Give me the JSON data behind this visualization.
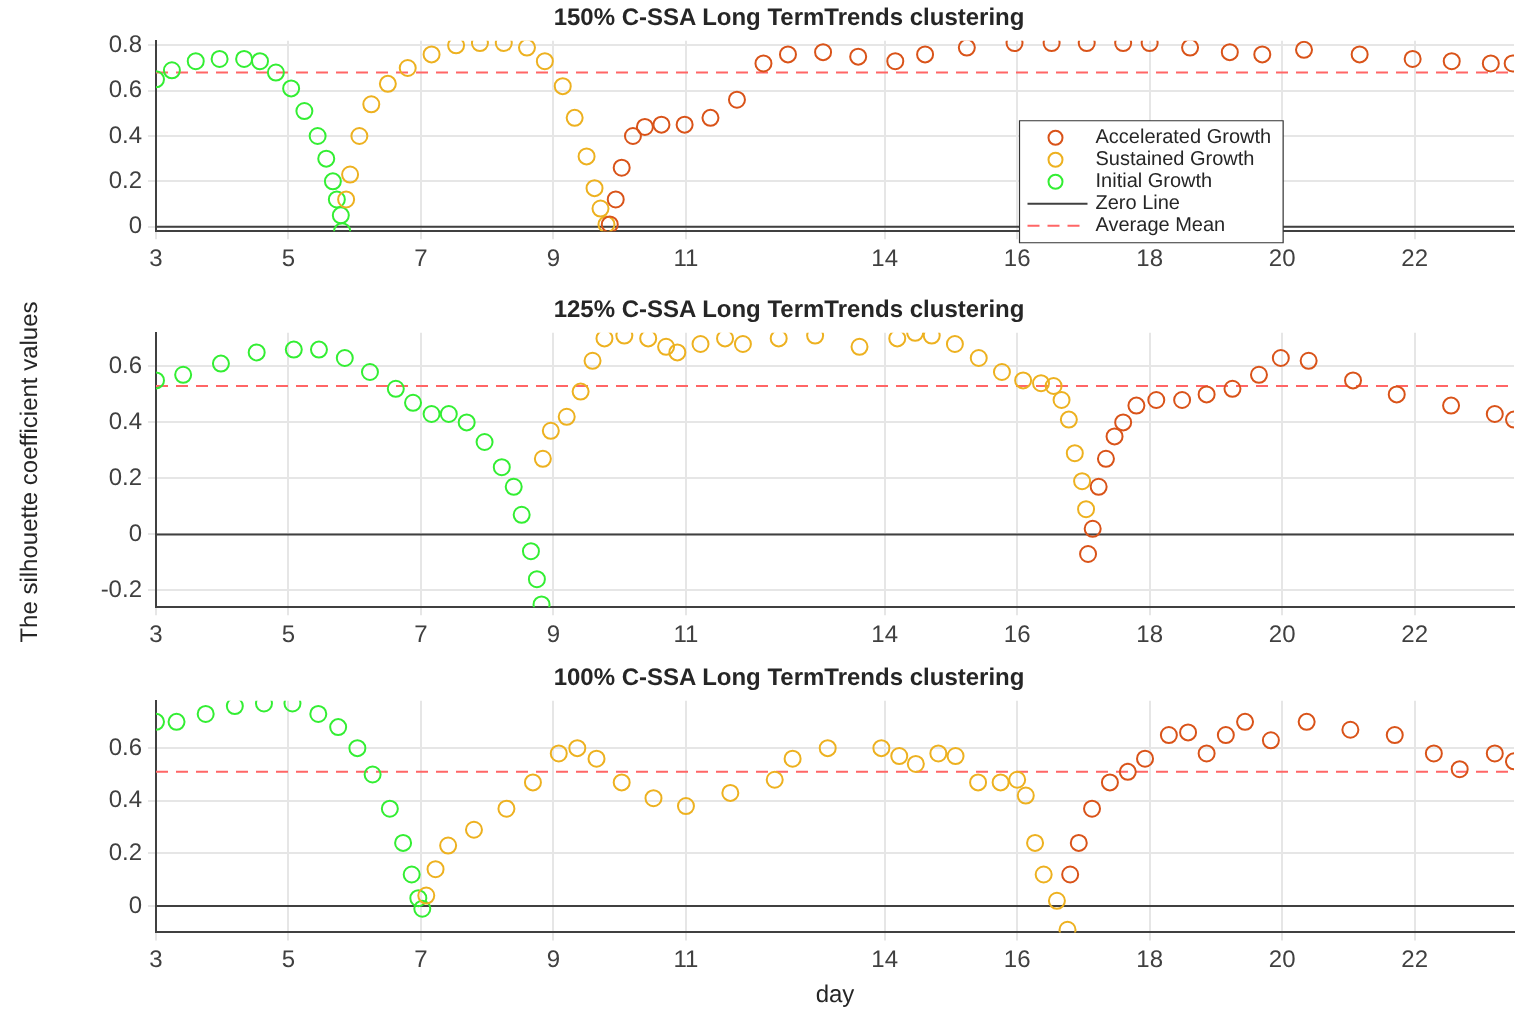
{
  "chart_data": [
    {
      "type": "scatter",
      "title": "150% C-SSA Long TermTrends clustering",
      "marker": "circle",
      "grid": true,
      "legend": "right",
      "xlim": [
        3,
        23.5
      ],
      "ylim": [
        -0.02,
        0.82
      ],
      "xticks": [
        3,
        5,
        7,
        9,
        11,
        14,
        16,
        18,
        20,
        22
      ],
      "yticks": [
        0,
        0.2,
        0.4,
        0.6,
        0.8
      ],
      "series": [
        {
          "name": "Accelerated Growth",
          "color": "#d95319",
          "x": [
            9.85,
            9.94,
            10.03,
            10.2,
            10.38,
            10.63,
            10.98,
            11.37,
            11.77,
            12.17,
            12.54,
            13.07,
            13.6,
            14.16,
            14.61,
            15.24,
            15.96,
            16.52,
            17.05,
            17.6,
            18,
            18.61,
            19.21,
            19.7,
            20.33,
            21.17,
            21.97,
            22.56,
            23.15,
            23.48
          ],
          "values": [
            0.01,
            0.12,
            0.26,
            0.4,
            0.44,
            0.45,
            0.45,
            0.48,
            0.56,
            0.72,
            0.76,
            0.77,
            0.75,
            0.73,
            0.76,
            0.79,
            0.81,
            0.81,
            0.81,
            0.81,
            0.81,
            0.79,
            0.77,
            0.76,
            0.78,
            0.76,
            0.74,
            0.73,
            0.72,
            0.72
          ]
        },
        {
          "name": "Sustained Growth",
          "color": "#edb120",
          "x": [
            5.87,
            5.93,
            6.07,
            6.25,
            6.5,
            6.8,
            7.16,
            7.53,
            7.89,
            8.25,
            8.6,
            8.87,
            9.14,
            9.32,
            9.5,
            9.62,
            9.71,
            9.8
          ],
          "values": [
            0.12,
            0.23,
            0.4,
            0.54,
            0.63,
            0.7,
            0.76,
            0.8,
            0.81,
            0.81,
            0.79,
            0.73,
            0.62,
            0.48,
            0.31,
            0.17,
            0.08,
            0.01
          ]
        },
        {
          "name": "Initial Growth",
          "color": "#33ee33",
          "x": [
            3,
            3.24,
            3.6,
            3.96,
            4.33,
            4.57,
            4.81,
            5.04,
            5.24,
            5.44,
            5.57,
            5.67,
            5.73,
            5.79,
            5.81
          ],
          "values": [
            0.65,
            0.69,
            0.73,
            0.74,
            0.74,
            0.73,
            0.68,
            0.61,
            0.51,
            0.4,
            0.3,
            0.2,
            0.12,
            0.05,
            -0.02
          ]
        }
      ],
      "ref_lines": [
        {
          "axis": "y",
          "value": 0,
          "label": "Zero Line",
          "color": "#404040",
          "line_style": "solid"
        },
        {
          "axis": "y",
          "value": 0.68,
          "label": "Average Mean",
          "color": "#ff6666",
          "line_style": "dashed"
        }
      ]
    },
    {
      "type": "scatter",
      "title": "125% C-SSA Long TermTrends clustering",
      "ylabel": "The silhouette coefficient values",
      "marker": "circle",
      "grid": true,
      "xlim": [
        3,
        23.5
      ],
      "ylim": [
        -0.26,
        0.72
      ],
      "xticks": [
        3,
        5,
        7,
        9,
        11,
        14,
        16,
        18,
        20,
        22
      ],
      "yticks": [
        -0.2,
        0,
        0.2,
        0.4,
        0.6
      ],
      "series": [
        {
          "color": "#d95319",
          "x": [
            17.07,
            17.14,
            17.23,
            17.34,
            17.47,
            17.6,
            17.8,
            18.1,
            18.49,
            18.86,
            19.25,
            19.65,
            19.98,
            20.4,
            21.07,
            21.73,
            22.55,
            23.21,
            23.5
          ],
          "values": [
            -0.07,
            0.02,
            0.17,
            0.27,
            0.35,
            0.4,
            0.46,
            0.48,
            0.48,
            0.5,
            0.52,
            0.57,
            0.63,
            0.62,
            0.55,
            0.5,
            0.46,
            0.43,
            0.41
          ]
        },
        {
          "color": "#edb120",
          "x": [
            8.84,
            8.96,
            9.2,
            9.41,
            9.59,
            9.77,
            10.07,
            10.43,
            10.7,
            10.87,
            11.22,
            11.59,
            11.86,
            12.4,
            12.95,
            13.62,
            14.19,
            14.46,
            14.71,
            15.06,
            15.42,
            15.77,
            16.09,
            16.36,
            16.55,
            16.67,
            16.78,
            16.87,
            16.98,
            17.04
          ],
          "values": [
            0.27,
            0.37,
            0.42,
            0.51,
            0.62,
            0.7,
            0.71,
            0.7,
            0.67,
            0.65,
            0.68,
            0.7,
            0.68,
            0.7,
            0.71,
            0.67,
            0.7,
            0.72,
            0.71,
            0.68,
            0.63,
            0.58,
            0.55,
            0.54,
            0.53,
            0.48,
            0.41,
            0.29,
            0.19,
            0.09
          ]
        },
        {
          "color": "#33ee33",
          "x": [
            3,
            3.41,
            3.98,
            4.52,
            5.08,
            5.46,
            5.85,
            6.23,
            6.62,
            6.88,
            7.16,
            7.42,
            7.69,
            7.96,
            8.22,
            8.4,
            8.52,
            8.66,
            8.75,
            8.82
          ],
          "values": [
            0.55,
            0.57,
            0.61,
            0.65,
            0.66,
            0.66,
            0.63,
            0.58,
            0.52,
            0.47,
            0.43,
            0.43,
            0.4,
            0.33,
            0.24,
            0.17,
            0.07,
            -0.06,
            -0.16,
            -0.25
          ]
        }
      ],
      "ref_lines": [
        {
          "axis": "y",
          "value": 0,
          "color": "#404040",
          "line_style": "solid"
        },
        {
          "axis": "y",
          "value": 0.53,
          "color": "#ff6666",
          "line_style": "dashed"
        }
      ]
    },
    {
      "type": "scatter",
      "title": "100% C-SSA Long TermTrends clustering",
      "xlabel": "day",
      "marker": "circle",
      "grid": true,
      "xlim": [
        3,
        23.5
      ],
      "ylim": [
        -0.1,
        0.78
      ],
      "xticks": [
        3,
        5,
        7,
        9,
        11,
        14,
        16,
        18,
        20,
        22
      ],
      "yticks": [
        0,
        0.2,
        0.4,
        0.6
      ],
      "series": [
        {
          "color": "#d95319",
          "x": [
            16.8,
            16.93,
            17.13,
            17.4,
            17.67,
            17.93,
            18.29,
            18.58,
            18.86,
            19.15,
            19.44,
            19.83,
            20.37,
            21.03,
            21.7,
            22.29,
            22.68,
            23.21,
            23.5
          ],
          "values": [
            0.12,
            0.24,
            0.37,
            0.47,
            0.51,
            0.56,
            0.65,
            0.66,
            0.58,
            0.65,
            0.7,
            0.63,
            0.7,
            0.67,
            0.65,
            0.58,
            0.52,
            0.58,
            0.55
          ]
        },
        {
          "color": "#edb120",
          "x": [
            7.08,
            7.22,
            7.41,
            7.8,
            8.29,
            8.69,
            9.08,
            9.36,
            9.65,
            10.03,
            10.51,
            11,
            11.67,
            12.34,
            12.61,
            13.14,
            13.95,
            14.22,
            14.47,
            14.81,
            15.07,
            15.41,
            15.75,
            16,
            16.13,
            16.27,
            16.4,
            16.6,
            16.76
          ],
          "values": [
            0.04,
            0.14,
            0.23,
            0.29,
            0.37,
            0.47,
            0.58,
            0.6,
            0.56,
            0.47,
            0.41,
            0.38,
            0.43,
            0.48,
            0.56,
            0.6,
            0.6,
            0.57,
            0.54,
            0.58,
            0.57,
            0.47,
            0.47,
            0.48,
            0.42,
            0.24,
            0.12,
            0.02,
            -0.09
          ]
        },
        {
          "color": "#33ee33",
          "x": [
            3,
            3.31,
            3.75,
            4.19,
            4.63,
            5.06,
            5.45,
            5.75,
            6.04,
            6.27,
            6.53,
            6.73,
            6.86,
            6.96,
            7.02
          ],
          "values": [
            0.7,
            0.7,
            0.73,
            0.76,
            0.77,
            0.77,
            0.73,
            0.68,
            0.6,
            0.5,
            0.37,
            0.24,
            0.12,
            0.03,
            -0.01
          ]
        }
      ],
      "ref_lines": [
        {
          "axis": "y",
          "value": 0,
          "color": "#404040",
          "line_style": "solid"
        },
        {
          "axis": "y",
          "value": 0.51,
          "color": "#ff6666",
          "line_style": "dashed"
        }
      ]
    }
  ]
}
